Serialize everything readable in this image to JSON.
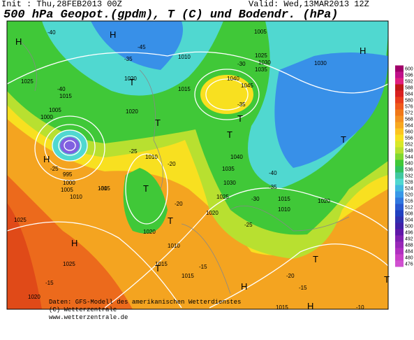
{
  "header": {
    "init": "Init : Thu,28FEB2013 00Z",
    "valid": "Valid: Wed,13MAR2013 12Z",
    "title": "500 hPa Geopot.(gpdm), T (C) und Bodendr. (hPa)"
  },
  "colorbar": {
    "labels": [
      "600",
      "596",
      "592",
      "588",
      "584",
      "580",
      "576",
      "572",
      "568",
      "564",
      "560",
      "556",
      "552",
      "548",
      "544",
      "540",
      "536",
      "532",
      "528",
      "524",
      "520",
      "516",
      "512",
      "508",
      "504",
      "500",
      "496",
      "492",
      "488",
      "484",
      "480",
      "476"
    ]
  },
  "map": {
    "labels": [
      "H",
      "H",
      "H",
      "H",
      "H",
      "H",
      "H",
      "T",
      "T",
      "T",
      "T",
      "T",
      "T",
      "T",
      "T",
      "T",
      "T",
      "1025",
      "1015",
      "1005",
      "1000",
      "995",
      "1000",
      "1005",
      "1010",
      "1015",
      "1020",
      "1020",
      "1010",
      "1010",
      "1015",
      "1005",
      "1025",
      "1030",
      "1035",
      "1040",
      "1045",
      "1040",
      "1035",
      "1030",
      "1025",
      "1020",
      "1010",
      "1015",
      "1030",
      "1020",
      "1015",
      "1010",
      "1015",
      "1025",
      "1025",
      "1020",
      "1020",
      "1015",
      "-40",
      "-45",
      "-40",
      "-35",
      "-30",
      "-25",
      "-25",
      "-20",
      "-30",
      "-35",
      "-40",
      "-35",
      "-30",
      "-25",
      "-20",
      "-15",
      "-15",
      "-20",
      "-15",
      "-10"
    ]
  },
  "footer": {
    "lines": [
      "Daten: GFS-Modell des amerikanischen Wetterdienstes",
      "(C) Wetterzentrale",
      "www.wetterzentrale.de"
    ]
  }
}
